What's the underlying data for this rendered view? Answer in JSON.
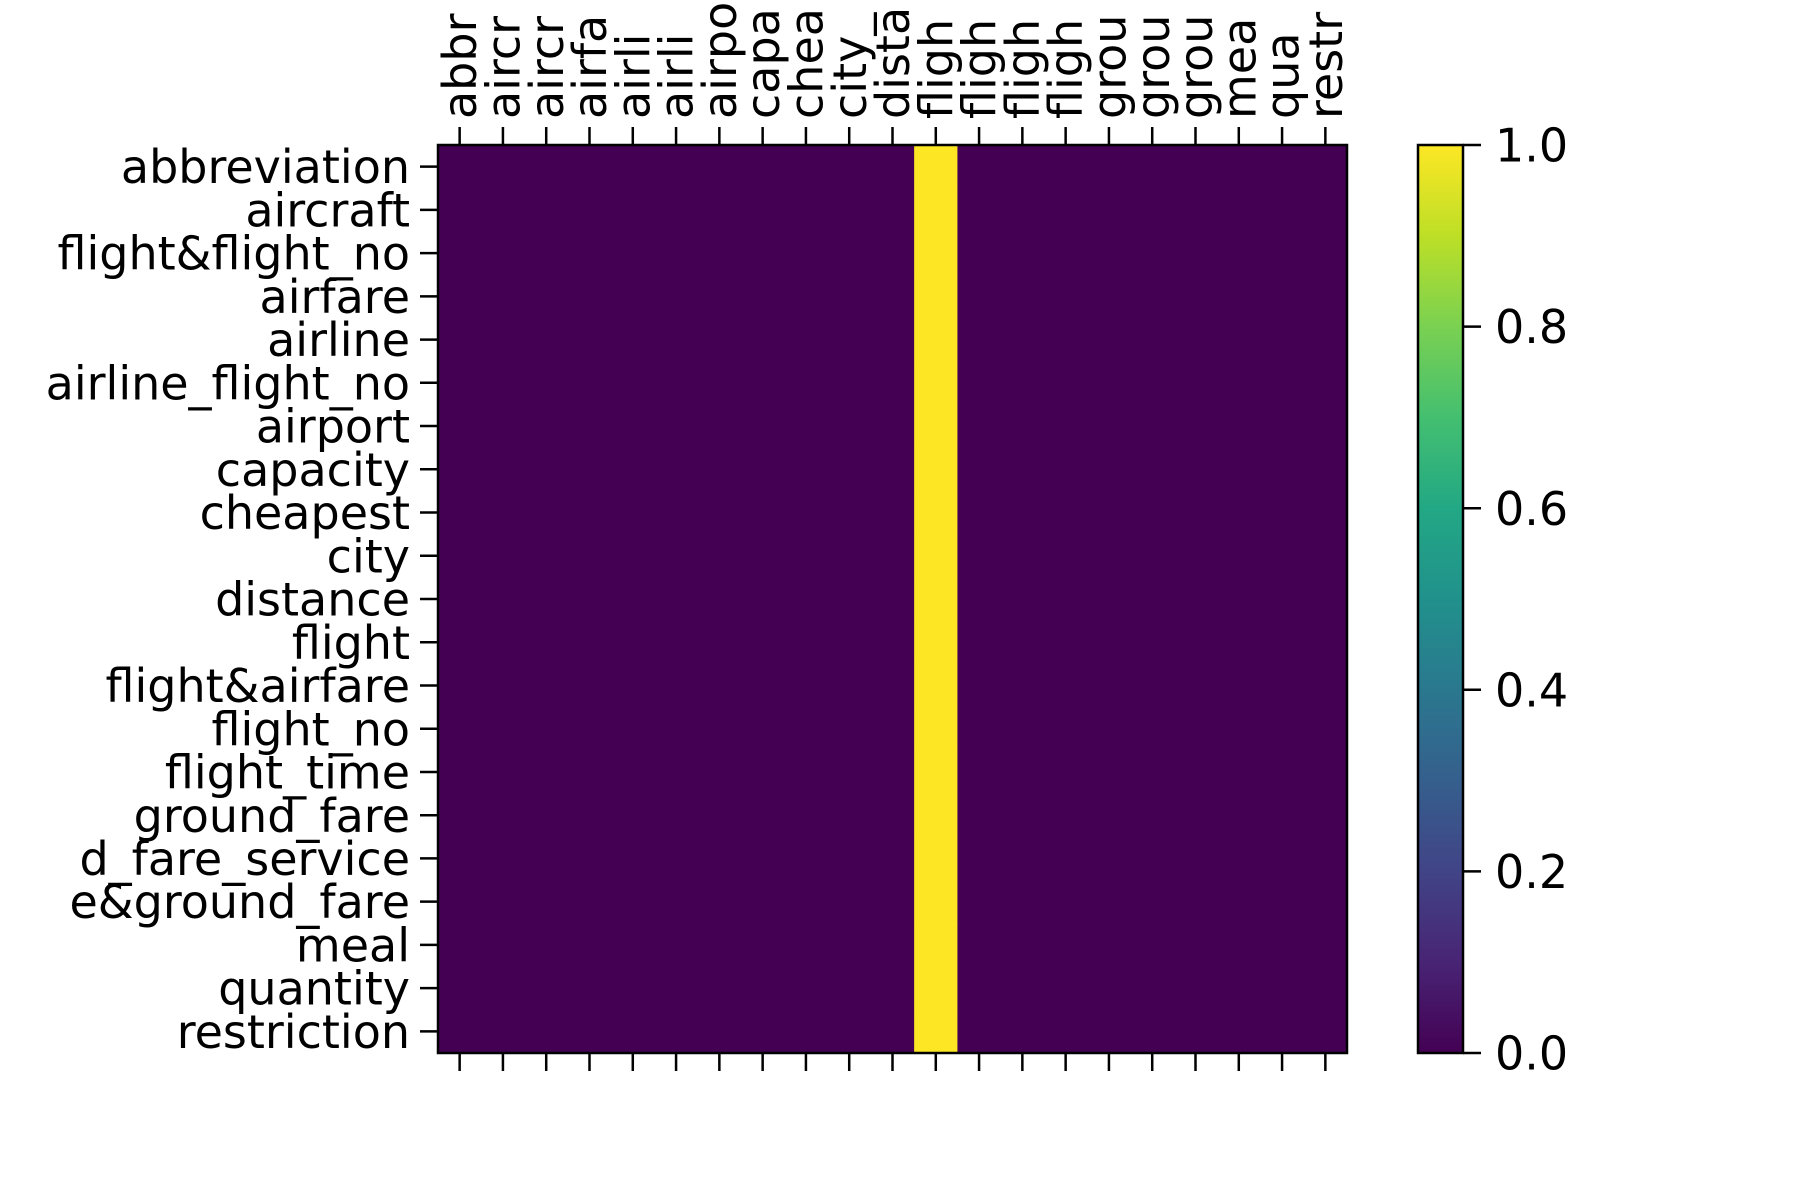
{
  "chart_data": {
    "type": "heatmap",
    "title": "",
    "xlabel": "",
    "ylabel": "",
    "x_tick_labels": [
      "abbr",
      "aircr",
      "aircr",
      "airfa",
      "airli",
      "airli",
      "airpo",
      "capa",
      "chea",
      "city_",
      "dista",
      "fligh",
      "fligh",
      "fligh",
      "fligh",
      "grou",
      "grou",
      "grou",
      "mea",
      "qua",
      "restr"
    ],
    "y_tick_labels": [
      "abbreviation",
      "aircraft",
      "flight&flight_no",
      "airfare",
      "airline",
      "airline_flight_no",
      "airport",
      "capacity",
      "cheapest",
      "city",
      "distance",
      "flight",
      "flight&airfare",
      "flight_no",
      "flight_time",
      "ground_fare",
      "d_fare_service",
      "e&ground_fare",
      "meal",
      "quantity",
      "restriction"
    ],
    "values": [
      [
        0,
        0,
        0,
        0,
        0,
        0,
        0,
        0,
        0,
        0,
        0,
        1,
        0,
        0,
        0,
        0,
        0,
        0,
        0,
        0,
        0
      ],
      [
        0,
        0,
        0,
        0,
        0,
        0,
        0,
        0,
        0,
        0,
        0,
        1,
        0,
        0,
        0,
        0,
        0,
        0,
        0,
        0,
        0
      ],
      [
        0,
        0,
        0,
        0,
        0,
        0,
        0,
        0,
        0,
        0,
        0,
        1,
        0,
        0,
        0,
        0,
        0,
        0,
        0,
        0,
        0
      ],
      [
        0,
        0,
        0,
        0,
        0,
        0,
        0,
        0,
        0,
        0,
        0,
        1,
        0,
        0,
        0,
        0,
        0,
        0,
        0,
        0,
        0
      ],
      [
        0,
        0,
        0,
        0,
        0,
        0,
        0,
        0,
        0,
        0,
        0,
        1,
        0,
        0,
        0,
        0,
        0,
        0,
        0,
        0,
        0
      ],
      [
        0,
        0,
        0,
        0,
        0,
        0,
        0,
        0,
        0,
        0,
        0,
        1,
        0,
        0,
        0,
        0,
        0,
        0,
        0,
        0,
        0
      ],
      [
        0,
        0,
        0,
        0,
        0,
        0,
        0,
        0,
        0,
        0,
        0,
        1,
        0,
        0,
        0,
        0,
        0,
        0,
        0,
        0,
        0
      ],
      [
        0,
        0,
        0,
        0,
        0,
        0,
        0,
        0,
        0,
        0,
        0,
        1,
        0,
        0,
        0,
        0,
        0,
        0,
        0,
        0,
        0
      ],
      [
        0,
        0,
        0,
        0,
        0,
        0,
        0,
        0,
        0,
        0,
        0,
        1,
        0,
        0,
        0,
        0,
        0,
        0,
        0,
        0,
        0
      ],
      [
        0,
        0,
        0,
        0,
        0,
        0,
        0,
        0,
        0,
        0,
        0,
        1,
        0,
        0,
        0,
        0,
        0,
        0,
        0,
        0,
        0
      ],
      [
        0,
        0,
        0,
        0,
        0,
        0,
        0,
        0,
        0,
        0,
        0,
        1,
        0,
        0,
        0,
        0,
        0,
        0,
        0,
        0,
        0
      ],
      [
        0,
        0,
        0,
        0,
        0,
        0,
        0,
        0,
        0,
        0,
        0,
        1,
        0,
        0,
        0,
        0,
        0,
        0,
        0,
        0,
        0
      ],
      [
        0,
        0,
        0,
        0,
        0,
        0,
        0,
        0,
        0,
        0,
        0,
        1,
        0,
        0,
        0,
        0,
        0,
        0,
        0,
        0,
        0
      ],
      [
        0,
        0,
        0,
        0,
        0,
        0,
        0,
        0,
        0,
        0,
        0,
        1,
        0,
        0,
        0,
        0,
        0,
        0,
        0,
        0,
        0
      ],
      [
        0,
        0,
        0,
        0,
        0,
        0,
        0,
        0,
        0,
        0,
        0,
        1,
        0,
        0,
        0,
        0,
        0,
        0,
        0,
        0,
        0
      ],
      [
        0,
        0,
        0,
        0,
        0,
        0,
        0,
        0,
        0,
        0,
        0,
        1,
        0,
        0,
        0,
        0,
        0,
        0,
        0,
        0,
        0
      ],
      [
        0,
        0,
        0,
        0,
        0,
        0,
        0,
        0,
        0,
        0,
        0,
        1,
        0,
        0,
        0,
        0,
        0,
        0,
        0,
        0,
        0
      ],
      [
        0,
        0,
        0,
        0,
        0,
        0,
        0,
        0,
        0,
        0,
        0,
        1,
        0,
        0,
        0,
        0,
        0,
        0,
        0,
        0,
        0
      ],
      [
        0,
        0,
        0,
        0,
        0,
        0,
        0,
        0,
        0,
        0,
        0,
        1,
        0,
        0,
        0,
        0,
        0,
        0,
        0,
        0,
        0
      ],
      [
        0,
        0,
        0,
        0,
        0,
        0,
        0,
        0,
        0,
        0,
        0,
        1,
        0,
        0,
        0,
        0,
        0,
        0,
        0,
        0,
        0
      ],
      [
        0,
        0,
        0,
        0,
        0,
        0,
        0,
        0,
        0,
        0,
        0,
        1,
        0,
        0,
        0,
        0,
        0,
        0,
        0,
        0,
        0
      ]
    ],
    "value_range": [
      0.0,
      1.0
    ],
    "colormap": "viridis",
    "colorbar": {
      "ticks": [
        0.0,
        0.2,
        0.4,
        0.6,
        0.8,
        1.0
      ],
      "tick_labels": [
        "0.0",
        "0.2",
        "0.4",
        "0.6",
        "0.8",
        "1.0"
      ],
      "placement": "right"
    },
    "x_ticks_position": "top",
    "grid": false,
    "colors": {
      "low": "#440154",
      "high": "#fde725"
    }
  }
}
